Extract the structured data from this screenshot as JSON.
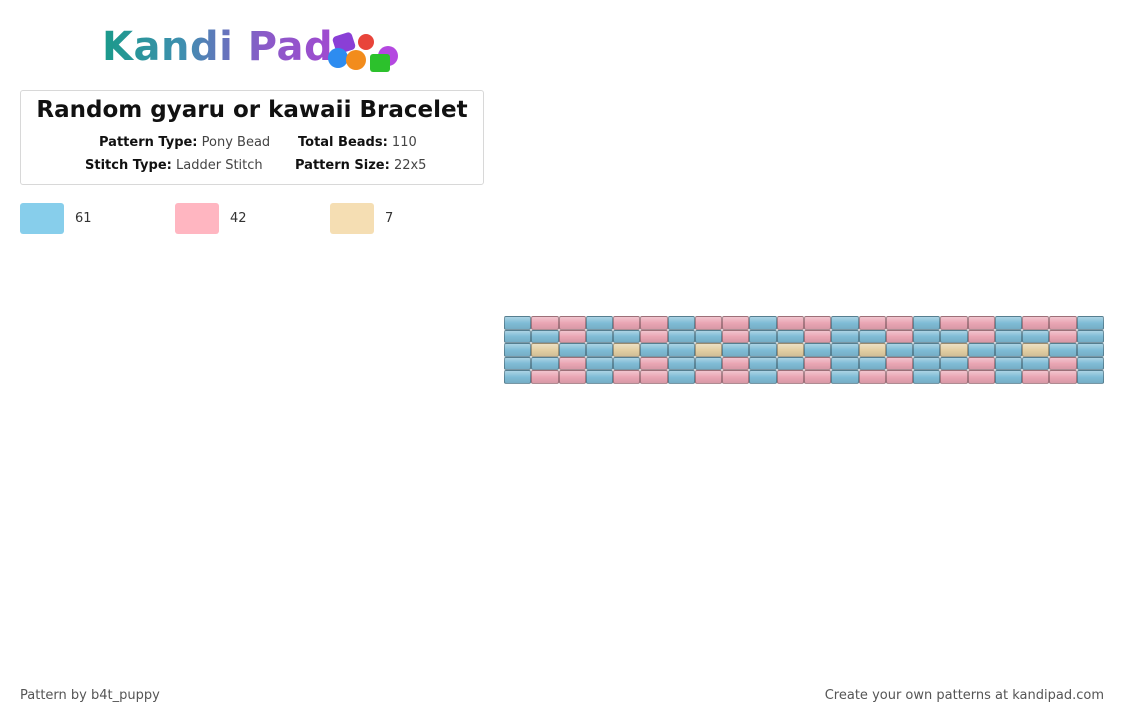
{
  "logo": "Kandi Pad",
  "title": "Random gyaru or kawaii Bracelet",
  "details": [
    {
      "label": "Pattern Type:",
      "value": "Pony Bead"
    },
    {
      "label": "Total Beads:",
      "value": 110
    },
    {
      "label": "Stitch Type:",
      "value": "Ladder Stitch"
    },
    {
      "label": "Pattern Size:",
      "value": "22x5"
    }
  ],
  "palette": [
    {
      "color": "#87ceeb",
      "count": 61
    },
    {
      "color": "#ffb6c1",
      "count": 42
    },
    {
      "color": "#f5deb3",
      "count": 7
    }
  ],
  "pattern": {
    "bead_colors": [
      "#7fbcd6",
      "#eaa6b4",
      "#e3cfa4"
    ],
    "rows": [
      [
        0,
        1,
        1,
        0,
        1,
        1,
        0,
        1,
        1,
        0,
        1,
        1,
        0,
        1,
        1,
        0,
        1,
        1,
        0,
        1,
        1,
        0
      ],
      [
        0,
        0,
        1,
        0,
        0,
        1,
        0,
        0,
        1,
        0,
        0,
        1,
        0,
        0,
        1,
        0,
        0,
        1,
        0,
        0,
        1,
        0
      ],
      [
        0,
        2,
        0,
        0,
        2,
        0,
        0,
        2,
        0,
        0,
        2,
        0,
        0,
        2,
        0,
        0,
        2,
        0,
        0,
        2,
        0,
        0
      ],
      [
        0,
        0,
        1,
        0,
        0,
        1,
        0,
        0,
        1,
        0,
        0,
        1,
        0,
        0,
        1,
        0,
        0,
        1,
        0,
        0,
        1,
        0
      ],
      [
        0,
        1,
        1,
        0,
        1,
        1,
        0,
        1,
        1,
        0,
        1,
        1,
        0,
        1,
        1,
        0,
        1,
        1,
        0,
        1,
        1,
        0
      ]
    ]
  },
  "footer": {
    "author": "Pattern by b4t_puppy",
    "credit": "Create your own patterns at kandipad.com"
  }
}
